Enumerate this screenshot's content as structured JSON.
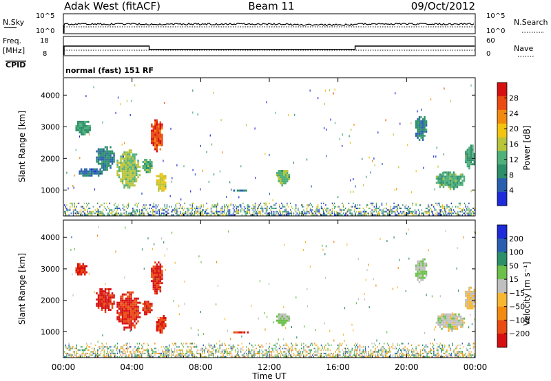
{
  "header": {
    "radar": "Adak West (fitACF)",
    "beam": "Beam 11",
    "date": "09/Oct/2012"
  },
  "noise_panel": {
    "left_label": "N.Sky",
    "right_label": "N.Search",
    "left_ticks": [
      "10^5",
      "10^0"
    ],
    "right_ticks": [
      "10^5",
      "10^0"
    ]
  },
  "freq_panel": {
    "left_label_1": "Freq.",
    "left_label_2": "[MHz]",
    "right_label": "Nave",
    "left_ticks": [
      "18",
      "8"
    ],
    "right_ticks": [
      "60",
      "0"
    ],
    "cpid_label": "CPID",
    "mode": "normal (fast) 151 RF"
  },
  "colors": {
    "power_scale": [
      "#1d2bd8",
      "#2a5fb0",
      "#2c8f6a",
      "#4fb07a",
      "#b8c43a",
      "#f2c410",
      "#f28a10",
      "#ea4b12",
      "#d61010"
    ],
    "velocity_scale": [
      "#d61010",
      "#ea4b12",
      "#f28a10",
      "#f7b733",
      "#bfbfbf",
      "#6cc04a",
      "#2c8f6a",
      "#2a5fb0",
      "#1d2bd8"
    ]
  },
  "chart_data": [
    {
      "type": "heatmap",
      "name_hint": "power",
      "ylabel": "Slant Range [km]",
      "xlabel": "Time UT",
      "x_ticks": [
        "00:00",
        "04:00",
        "08:00",
        "12:00",
        "16:00",
        "20:00",
        "00:00"
      ],
      "y_ticks": [
        "1000",
        "2000",
        "3000",
        "4000"
      ],
      "ylim": [
        180,
        4550
      ],
      "xlim": [
        0,
        24
      ],
      "colorbar_label": "Power [dB]",
      "colorbar_ticks": [
        "4",
        "8",
        "12",
        "16",
        "20",
        "24",
        "28"
      ],
      "colorbar_range": [
        0,
        32
      ],
      "blobs": [
        {
          "t0": 0.6,
          "t1": 1.6,
          "r0": 2750,
          "r1": 3250,
          "v": 10
        },
        {
          "t0": 0.8,
          "t1": 2.4,
          "r0": 1450,
          "r1": 1750,
          "v": 6
        },
        {
          "t0": 1.8,
          "t1": 3.0,
          "r0": 1650,
          "r1": 2450,
          "v": 8
        },
        {
          "t0": 3.0,
          "t1": 4.5,
          "r0": 1050,
          "r1": 2350,
          "v": 15
        },
        {
          "t0": 4.5,
          "t1": 5.2,
          "r0": 1550,
          "r1": 2050,
          "v": 12
        },
        {
          "t0": 5.0,
          "t1": 5.8,
          "r0": 2200,
          "r1": 3300,
          "v": 27
        },
        {
          "t0": 5.3,
          "t1": 6.0,
          "r0": 950,
          "r1": 1600,
          "v": 17
        },
        {
          "t0": 9.8,
          "t1": 10.8,
          "r0": 980,
          "r1": 1080,
          "v": 7
        },
        {
          "t0": 12.3,
          "t1": 13.2,
          "r0": 1150,
          "r1": 1700,
          "v": 13
        },
        {
          "t0": 20.4,
          "t1": 21.2,
          "r0": 2600,
          "r1": 3400,
          "v": 8
        },
        {
          "t0": 21.6,
          "t1": 23.4,
          "r0": 1050,
          "r1": 1650,
          "v": 12
        },
        {
          "t0": 23.3,
          "t1": 24.0,
          "r0": 1700,
          "r1": 2500,
          "v": 10
        }
      ],
      "ground_band": {
        "r0": 200,
        "r1": 600,
        "v": 10
      }
    },
    {
      "type": "heatmap",
      "name_hint": "velocity",
      "ylabel": "Slant Range [km]",
      "xlabel": "Time UT",
      "x_ticks": [
        "00:00",
        "04:00",
        "08:00",
        "12:00",
        "16:00",
        "20:00",
        "00:00"
      ],
      "y_ticks": [
        "1000",
        "2000",
        "3000",
        "4000"
      ],
      "ylim": [
        180,
        4550
      ],
      "xlim": [
        0,
        24
      ],
      "colorbar_label": "Velocity [m s⁻¹]",
      "colorbar_ticks": [
        "200",
        "100",
        "50",
        "15",
        "−15",
        "−50",
        "−100",
        "−200"
      ],
      "colorbar_range": [
        -250,
        250
      ],
      "blobs": [
        {
          "t0": 0.6,
          "t1": 1.4,
          "r0": 2800,
          "r1": 3250,
          "v": -200
        },
        {
          "t0": 1.8,
          "t1": 3.0,
          "r0": 1650,
          "r1": 2450,
          "v": -220
        },
        {
          "t0": 3.0,
          "t1": 4.5,
          "r0": 1050,
          "r1": 2350,
          "v": -200
        },
        {
          "t0": 4.5,
          "t1": 5.2,
          "r0": 1550,
          "r1": 2050,
          "v": -200
        },
        {
          "t0": 5.0,
          "t1": 5.8,
          "r0": 2200,
          "r1": 3300,
          "v": -210
        },
        {
          "t0": 5.3,
          "t1": 6.0,
          "r0": 950,
          "r1": 1600,
          "v": -200
        },
        {
          "t0": 9.8,
          "t1": 10.8,
          "r0": 980,
          "r1": 1080,
          "v": -200
        },
        {
          "t0": 12.3,
          "t1": 13.2,
          "r0": 1250,
          "r1": 1650,
          "v": 30
        },
        {
          "t0": 20.4,
          "t1": 21.2,
          "r0": 2600,
          "r1": 3400,
          "v": 20
        },
        {
          "t0": 21.6,
          "t1": 23.4,
          "r0": 1050,
          "r1": 1650,
          "v": 0
        },
        {
          "t0": 23.3,
          "t1": 24.0,
          "r0": 1700,
          "r1": 2500,
          "v": -30
        }
      ],
      "ground_band": {
        "r0": 200,
        "r1": 650,
        "v": 20
      }
    }
  ]
}
